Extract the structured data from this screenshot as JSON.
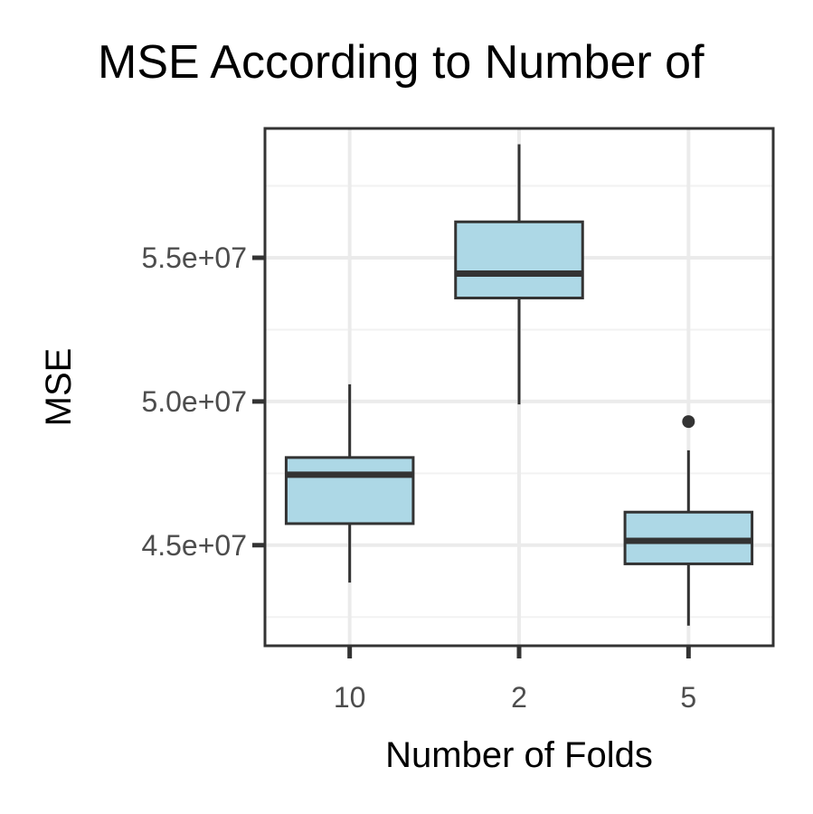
{
  "chart_data": {
    "type": "box",
    "title": "MSE According to Number of",
    "xlabel": "Number of Folds",
    "ylabel": "MSE",
    "categories": [
      "10",
      "2",
      "5"
    ],
    "y_ticks": [
      {
        "value": 45000000,
        "label": "4.5e+07"
      },
      {
        "value": 50000000,
        "label": "5.0e+07"
      },
      {
        "value": 55000000,
        "label": "5.5e+07"
      }
    ],
    "ylim": [
      41500000,
      59500000
    ],
    "grid": true,
    "boxes": [
      {
        "category": "10",
        "whisker_low": 43700000,
        "q1": 45750000,
        "median": 47450000,
        "q3": 48050000,
        "whisker_high": 50600000,
        "outliers": []
      },
      {
        "category": "2",
        "whisker_low": 49900000,
        "q1": 53600000,
        "median": 54450000,
        "q3": 56250000,
        "whisker_high": 58950000,
        "outliers": []
      },
      {
        "category": "5",
        "whisker_low": 42200000,
        "q1": 44350000,
        "median": 45150000,
        "q3": 46150000,
        "whisker_high": 48300000,
        "outliers": [
          49300000
        ]
      }
    ],
    "colors": {
      "box_fill": "#add8e6",
      "box_stroke": "#333333",
      "grid_major": "#ebebeb",
      "grid_minor": "#f2f2f2",
      "panel_border": "#333333",
      "tick_text": "#4d4d4d"
    }
  }
}
